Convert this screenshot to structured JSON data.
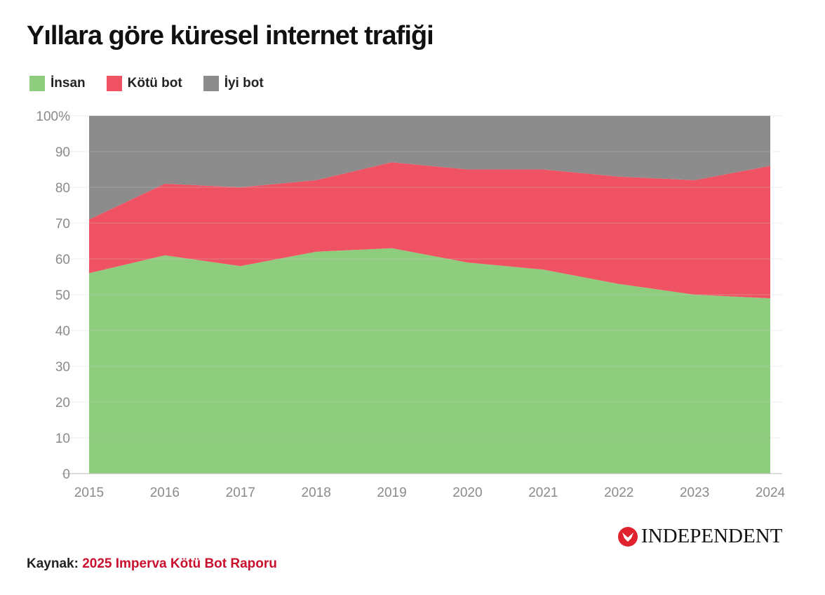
{
  "chart_data": {
    "type": "area",
    "stacked": true,
    "title": "Yıllara göre küresel internet trafiği",
    "xlabel": "",
    "ylabel": "",
    "categories": [
      "2015",
      "2016",
      "2017",
      "2018",
      "2019",
      "2020",
      "2021",
      "2022",
      "2023",
      "2024"
    ],
    "series": [
      {
        "name": "İnsan",
        "color": "#8ecc7e",
        "values": [
          56,
          61,
          58,
          62,
          63,
          59,
          57,
          53,
          50,
          49
        ]
      },
      {
        "name": "Kötü bot",
        "color": "#ef5363",
        "values": [
          15,
          20,
          22,
          20,
          24,
          26,
          28,
          30,
          32,
          37
        ]
      },
      {
        "name": "İyi bot",
        "color": "#8c8c8c",
        "values": [
          29,
          19,
          20,
          18,
          13,
          15,
          15,
          17,
          18,
          14
        ]
      }
    ],
    "ylim": [
      0,
      100
    ],
    "yticks": [
      "0",
      "10",
      "20",
      "30",
      "40",
      "50",
      "60",
      "70",
      "80",
      "90",
      "100%"
    ],
    "grid": true,
    "legend": "top-left"
  },
  "source": {
    "label": "Kaynak:",
    "text": "2025 Imperva Kötü Bot Raporu"
  },
  "logo": {
    "text": "INDEPENDENT"
  }
}
